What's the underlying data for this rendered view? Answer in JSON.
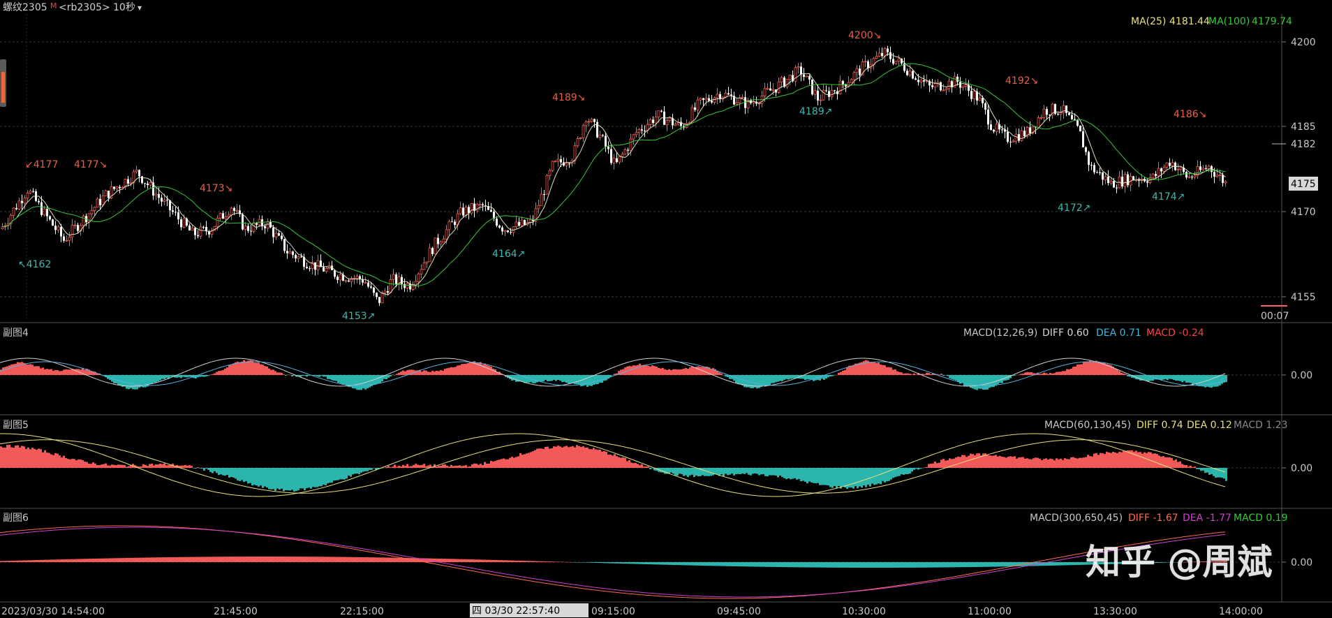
{
  "header": {
    "title": "螺纹2305",
    "marker": "M",
    "code": "<rb2305>",
    "period": "10秒",
    "dropdown_glyph": "▾"
  },
  "main": {
    "ma_labels": [
      {
        "text": "MA(25)",
        "color": "#e8e07a"
      },
      {
        "text": "4181.44",
        "color": "#e8e07a"
      },
      {
        "text": "MA(100)",
        "color": "#37c837"
      },
      {
        "text": "4179.74",
        "color": "#37c837"
      }
    ],
    "price_ticks": [
      "4200",
      "4185",
      "4170",
      "4155"
    ],
    "current_price_label": "4182",
    "highlight_price_label": "4175",
    "countdown": "00:07",
    "annotations": [
      {
        "text": "↙4177",
        "color": "#e8604a"
      },
      {
        "text": "4177↘",
        "color": "#e8604a"
      },
      {
        "text": "4173↘",
        "color": "#e8604a"
      },
      {
        "text": "4189↘",
        "color": "#e8604a"
      },
      {
        "text": "4200↘",
        "color": "#e8604a"
      },
      {
        "text": "4192↘",
        "color": "#e8604a"
      },
      {
        "text": "4186↘",
        "color": "#e8604a"
      },
      {
        "text": "↖4162",
        "color": "#3fb8b0"
      },
      {
        "text": "4153↗",
        "color": "#3fb8b0"
      },
      {
        "text": "4164↗",
        "color": "#3fb8b0"
      },
      {
        "text": "4189↗",
        "color": "#3fb8b0"
      },
      {
        "text": "4172↗",
        "color": "#3fb8b0"
      },
      {
        "text": "4174↗",
        "color": "#3fb8b0"
      }
    ]
  },
  "sub4": {
    "title": "副图4",
    "legend": [
      {
        "text": "MACD(12,26,9)",
        "color": "#c8c8c8"
      },
      {
        "text": "DIFF 0.60",
        "color": "#d8d8d8"
      },
      {
        "text": "DEA 0.71",
        "color": "#3fb8e0"
      },
      {
        "text": "MACD -0.24",
        "color": "#ff4040"
      }
    ],
    "zero_label": "0.00"
  },
  "sub5": {
    "title": "副图5",
    "legend": [
      {
        "text": "MACD(60,130,45)",
        "color": "#c8c8c8"
      },
      {
        "text": "DIFF 0.74",
        "color": "#e8e07a"
      },
      {
        "text": "DEA 0.12",
        "color": "#e8e07a"
      },
      {
        "text": "MACD 1.23",
        "color": "#8a8a8a"
      }
    ],
    "zero_label": "0.00"
  },
  "sub6": {
    "title": "副图6",
    "legend": [
      {
        "text": "MACD(300,650,45)",
        "color": "#c8c8c8"
      },
      {
        "text": "DIFF -1.67",
        "color": "#ff6a50"
      },
      {
        "text": "DEA -1.77",
        "color": "#d040d0"
      },
      {
        "text": "MACD 0.19",
        "color": "#37c837"
      }
    ],
    "zero_label": "0.00"
  },
  "time_axis": {
    "labels": [
      "2023/03/30 14:54:00",
      "21:45:00",
      "22:15:00",
      "09:15:00",
      "09:45:00",
      "10:30:00",
      "11:00:00",
      "13:30:00",
      "14:00:00"
    ],
    "cursor_label": "四 03/30 22:57:40"
  },
  "watermark": "知乎 @周斌",
  "colors": {
    "up": "#ff5a4a",
    "down": "#ffffff",
    "macd_pos": "#f25a5a",
    "macd_neg": "#2bb5ad",
    "grid": "#3a3a3a",
    "ma25": "#e8e07a",
    "ma100": "#37c837"
  }
}
